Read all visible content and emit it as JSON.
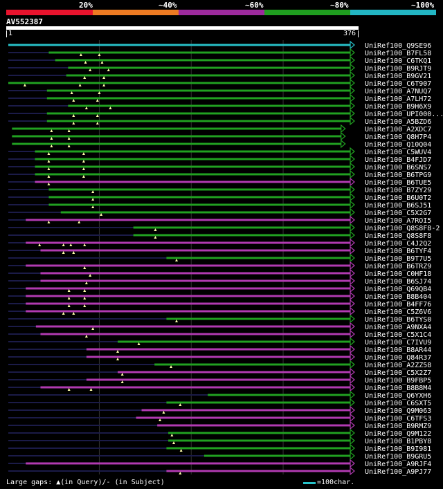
{
  "query": {
    "name": "AV552387",
    "start": 1,
    "end": 376,
    "start_label": "1",
    "end_label": "376"
  },
  "coverage_legend": [
    {
      "label": "20%",
      "color": "#e8132d"
    },
    {
      "label": "~40%",
      "color": "#ec7a22"
    },
    {
      "label": "~60%",
      "color": "#9c2a9c"
    },
    {
      "label": "~80%",
      "color": "#1f9d1f"
    },
    {
      "label": "~100%",
      "color": "#23b6c4"
    }
  ],
  "colors": {
    "cyan": "#27c1c8",
    "purple": "#b13ab1",
    "green": "#21a121",
    "dim": "#1b1b48",
    "grid": "#333333",
    "gap": "#ffffaa",
    "text": "#ffffff"
  },
  "grid_positions": [
    100,
    200,
    300
  ],
  "footer": {
    "gaps_text": "Large gaps: ▲(in Query)/- (in Subject)",
    "scale_text": "=100char."
  },
  "hits": [
    {
      "name": "UniRef100_Q9SE96",
      "color": "cyan",
      "start": 1,
      "end": 376,
      "dim_from": null,
      "gaps": []
    },
    {
      "name": "UniRef100_B7FL58",
      "color": "green",
      "start": 45,
      "end": 376,
      "dim_from": 1,
      "gaps": [
        80,
        100
      ]
    },
    {
      "name": "UniRef100_C6TKQ1",
      "color": "green",
      "start": 52,
      "end": 376,
      "dim_from": 1,
      "gaps": [
        85,
        103
      ]
    },
    {
      "name": "UniRef100_B9RJT9",
      "color": "green",
      "start": 66,
      "end": 376,
      "dim_from": 1,
      "gaps": [
        90,
        110
      ]
    },
    {
      "name": "UniRef100_B9GV21",
      "color": "green",
      "start": 64,
      "end": 376,
      "dim_from": 1,
      "gaps": [
        84,
        105
      ]
    },
    {
      "name": "UniRef100_C6T907",
      "color": "green",
      "start": 1,
      "end": 376,
      "dim_from": null,
      "gaps": [
        19,
        79,
        105
      ]
    },
    {
      "name": "UniRef100_A7NUQ7",
      "color": "green",
      "start": 43,
      "end": 376,
      "dim_from": 1,
      "gaps": [
        70,
        100
      ]
    },
    {
      "name": "UniRef100_A7LH72",
      "color": "green",
      "start": 43,
      "end": 376,
      "dim_from": 1,
      "gaps": [
        72,
        98
      ]
    },
    {
      "name": "UniRef100_B9H6X9",
      "color": "green",
      "start": 66,
      "end": 376,
      "dim_from": 1,
      "gaps": [
        86,
        112
      ]
    },
    {
      "name": "UniRef100_UPI000...",
      "color": "green",
      "start": 43,
      "end": 376,
      "dim_from": 1,
      "gaps": [
        72,
        98
      ]
    },
    {
      "name": "UniRef100_A5BZD6",
      "color": "green",
      "start": 43,
      "end": 376,
      "dim_from": 1,
      "gaps": [
        72,
        98
      ]
    },
    {
      "name": "UniRef100_A2XDC7",
      "color": "green",
      "start": 5,
      "end": 366,
      "dim_from": null,
      "gaps": [
        48,
        67
      ]
    },
    {
      "name": "UniRef100_Q8H7P4",
      "color": "green",
      "start": 5,
      "end": 366,
      "dim_from": null,
      "gaps": [
        48,
        67
      ]
    },
    {
      "name": "UniRef100_Q10Q04",
      "color": "green",
      "start": 5,
      "end": 366,
      "dim_from": null,
      "gaps": [
        48,
        67
      ]
    },
    {
      "name": "UniRef100_C5WUV4",
      "color": "green",
      "start": 30,
      "end": 376,
      "dim_from": 1,
      "gaps": [
        45,
        83
      ]
    },
    {
      "name": "UniRef100_B4FJD7",
      "color": "green",
      "start": 30,
      "end": 376,
      "dim_from": 1,
      "gaps": [
        45,
        83
      ]
    },
    {
      "name": "UniRef100_B6SNS7",
      "color": "green",
      "start": 30,
      "end": 376,
      "dim_from": 1,
      "gaps": [
        45,
        83
      ]
    },
    {
      "name": "UniRef100_B6TPG9",
      "color": "green",
      "start": 30,
      "end": 376,
      "dim_from": 1,
      "gaps": [
        45,
        83
      ]
    },
    {
      "name": "UniRef100_B6TUE5",
      "color": "purple",
      "start": 30,
      "end": 376,
      "dim_from": 1,
      "gaps": [
        45
      ]
    },
    {
      "name": "UniRef100_B7ZY29",
      "color": "green",
      "start": 45,
      "end": 376,
      "dim_from": 1,
      "gaps": [
        93
      ]
    },
    {
      "name": "UniRef100_B6U0T2",
      "color": "green",
      "start": 45,
      "end": 376,
      "dim_from": 1,
      "gaps": [
        93
      ]
    },
    {
      "name": "UniRef100_B6SJ51",
      "color": "green",
      "start": 45,
      "end": 376,
      "dim_from": 1,
      "gaps": [
        93
      ]
    },
    {
      "name": "UniRef100_C5X2G7",
      "color": "green",
      "start": 58,
      "end": 376,
      "dim_from": 1,
      "gaps": [
        102
      ]
    },
    {
      "name": "UniRef100_A7ROI5",
      "color": "purple",
      "start": 20,
      "end": 376,
      "dim_from": 1,
      "gaps": [
        45,
        78
      ]
    },
    {
      "name": "UniRef100_Q8S8F8-2",
      "color": "green",
      "start": 137,
      "end": 376,
      "dim_from": 1,
      "gaps": [
        161
      ]
    },
    {
      "name": "UniRef100_Q8S8F8",
      "color": "green",
      "start": 137,
      "end": 376,
      "dim_from": 1,
      "gaps": [
        161
      ]
    },
    {
      "name": "UniRef100_C4J2Q2",
      "color": "purple",
      "start": 20,
      "end": 376,
      "dim_from": 1,
      "gaps": [
        35,
        61,
        69,
        84
      ]
    },
    {
      "name": "UniRef100_B6TYF4",
      "color": "purple",
      "start": 36,
      "end": 376,
      "dim_from": 1,
      "gaps": [
        61,
        72
      ]
    },
    {
      "name": "UniRef100_B9T7U5",
      "color": "green",
      "start": 173,
      "end": 376,
      "dim_from": 1,
      "gaps": [
        184
      ]
    },
    {
      "name": "UniRef100_B6TRZ9",
      "color": "purple",
      "start": 20,
      "end": 376,
      "dim_from": 1,
      "gaps": [
        84
      ]
    },
    {
      "name": "UniRef100_C0HF18",
      "color": "purple",
      "start": 36,
      "end": 376,
      "dim_from": 1,
      "gaps": [
        90
      ]
    },
    {
      "name": "UniRef100_B6SJ74",
      "color": "purple",
      "start": 36,
      "end": 376,
      "dim_from": 1,
      "gaps": [
        86
      ]
    },
    {
      "name": "UniRef100_Q69QB4",
      "color": "purple",
      "start": 20,
      "end": 376,
      "dim_from": 1,
      "gaps": [
        67,
        84
      ]
    },
    {
      "name": "UniRef100_B8B404",
      "color": "purple",
      "start": 20,
      "end": 376,
      "dim_from": 1,
      "gaps": [
        67,
        84
      ]
    },
    {
      "name": "UniRef100_B4FF76",
      "color": "purple",
      "start": 20,
      "end": 376,
      "dim_from": 1,
      "gaps": [
        67,
        84
      ]
    },
    {
      "name": "UniRef100_C5Z6V6",
      "color": "purple",
      "start": 20,
      "end": 376,
      "dim_from": 1,
      "gaps": [
        61,
        72
      ]
    },
    {
      "name": "UniRef100_B6TYS0",
      "color": "green",
      "start": 173,
      "end": 376,
      "dim_from": 1,
      "gaps": [
        184
      ]
    },
    {
      "name": "UniRef100_A9NXA4",
      "color": "purple",
      "start": 31,
      "end": 376,
      "dim_from": 1,
      "gaps": [
        93
      ]
    },
    {
      "name": "UniRef100_C5X1C4",
      "color": "purple",
      "start": 36,
      "end": 376,
      "dim_from": 1,
      "gaps": [
        86
      ]
    },
    {
      "name": "UniRef100_C7IVU9",
      "color": "green",
      "start": 120,
      "end": 376,
      "dim_from": 1,
      "gaps": [
        143
      ]
    },
    {
      "name": "UniRef100_B8AR44",
      "color": "purple",
      "start": 86,
      "end": 376,
      "dim_from": 1,
      "gaps": [
        120
      ]
    },
    {
      "name": "UniRef100_Q84R37",
      "color": "purple",
      "start": 86,
      "end": 376,
      "dim_from": 1,
      "gaps": [
        120
      ]
    },
    {
      "name": "UniRef100_A2ZZ58",
      "color": "green",
      "start": 160,
      "end": 376,
      "dim_from": 1,
      "gaps": [
        178
      ]
    },
    {
      "name": "UniRef100_C5X2Z7",
      "color": "purple",
      "start": 120,
      "end": 376,
      "dim_from": 1,
      "gaps": [
        125
      ]
    },
    {
      "name": "UniRef100_B9FBP5",
      "color": "purple",
      "start": 86,
      "end": 376,
      "dim_from": 1,
      "gaps": [
        125
      ]
    },
    {
      "name": "UniRef100_B8B8M4",
      "color": "purple",
      "start": 36,
      "end": 376,
      "dim_from": 1,
      "gaps": [
        67,
        91
      ]
    },
    {
      "name": "UniRef100_Q6YXH6",
      "color": "green",
      "start": 218,
      "end": 376,
      "dim_from": 1,
      "gaps": []
    },
    {
      "name": "UniRef100_C6SXT5",
      "color": "green",
      "start": 173,
      "end": 376,
      "dim_from": 1,
      "gaps": [
        188
      ]
    },
    {
      "name": "UniRef100_Q9M063",
      "color": "purple",
      "start": 146,
      "end": 376,
      "dim_from": 1,
      "gaps": [
        170
      ]
    },
    {
      "name": "UniRef100_C6TFS3",
      "color": "purple",
      "start": 140,
      "end": 376,
      "dim_from": 1,
      "gaps": [
        166
      ]
    },
    {
      "name": "UniRef100_B9RMZ9",
      "color": "purple",
      "start": 163,
      "end": 376,
      "dim_from": 1,
      "gaps": []
    },
    {
      "name": "UniRef100_Q9M122",
      "color": "green",
      "start": 175,
      "end": 376,
      "dim_from": 1,
      "gaps": [
        179
      ]
    },
    {
      "name": "UniRef100_B1PBY8",
      "color": "green",
      "start": 175,
      "end": 376,
      "dim_from": 1,
      "gaps": [
        181
      ]
    },
    {
      "name": "UniRef100_B9I981",
      "color": "green",
      "start": 173,
      "end": 376,
      "dim_from": 1,
      "gaps": [
        189
      ]
    },
    {
      "name": "UniRef100_B9GRU5",
      "color": "green",
      "start": 214,
      "end": 376,
      "dim_from": 1,
      "gaps": []
    },
    {
      "name": "UniRef100_A9RJF4",
      "color": "purple",
      "start": 20,
      "end": 376,
      "dim_from": 1,
      "gaps": []
    },
    {
      "name": "UniRef100_A9PJ77",
      "color": "purple",
      "start": 173,
      "end": 376,
      "dim_from": 1,
      "gaps": [
        188
      ]
    }
  ]
}
